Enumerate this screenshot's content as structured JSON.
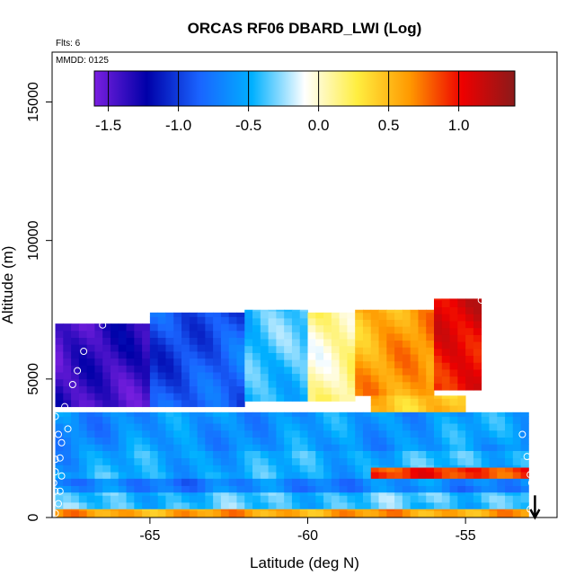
{
  "chart_data": {
    "type": "heatmap",
    "title": "ORCAS RF06 DBARD_LWI (Log)",
    "annotations": {
      "flights": "Flts: 6",
      "date": "MMDD: 0125"
    },
    "xlabel": "Latitude (deg N)",
    "ylabel": "Altitude (m)",
    "xlim": [
      -68.1,
      -52.1
    ],
    "ylim": [
      0,
      16800
    ],
    "x_ticks": [
      -65,
      -60,
      -55
    ],
    "x_tick_labels": [
      "-65",
      "-60",
      "-55"
    ],
    "y_ticks": [
      0,
      5000,
      10000,
      15000
    ],
    "y_tick_labels": [
      "0",
      "5000",
      "10000",
      "15000"
    ],
    "colorbar": {
      "range": [
        -1.6,
        1.4
      ],
      "ticks": [
        -1.5,
        -1.0,
        -0.5,
        0.0,
        0.5,
        1.0
      ],
      "tick_labels": [
        "-1.5",
        "-1.0",
        "-0.5",
        "0.0",
        "0.5",
        "1.0"
      ],
      "colors": [
        "#7a1fe0",
        "#0000a8",
        "#1a64ff",
        "#00b0ff",
        "#ffffff",
        "#ffee40",
        "#ff9900",
        "#ee0000",
        "#8b1a1a"
      ]
    },
    "grid": false,
    "cell_size": {
      "lat": 0.25,
      "alt": 250
    },
    "field_regions": [
      {
        "lat": [
          -68.0,
          -65.0
        ],
        "alt": [
          4000,
          7000
        ],
        "value": -1.4
      },
      {
        "lat": [
          -65.0,
          -62.0
        ],
        "alt": [
          4000,
          7400
        ],
        "value": -0.9
      },
      {
        "lat": [
          -62.0,
          -60.0
        ],
        "alt": [
          4200,
          7500
        ],
        "value": -0.4
      },
      {
        "lat": [
          -60.0,
          -58.5
        ],
        "alt": [
          4200,
          7400
        ],
        "value": 0.1
      },
      {
        "lat": [
          -58.5,
          -56.0
        ],
        "alt": [
          4400,
          7500
        ],
        "value": 0.6
      },
      {
        "lat": [
          -56.0,
          -54.5
        ],
        "alt": [
          4600,
          7900
        ],
        "value": 1.05
      },
      {
        "lat": [
          -58.0,
          -55.0
        ],
        "alt": [
          2800,
          4400
        ],
        "value": 0.5
      },
      {
        "lat": [
          -68.0,
          -53.0
        ],
        "alt": [
          2400,
          3800
        ],
        "value": -0.6
      },
      {
        "lat": [
          -68.0,
          -53.0
        ],
        "alt": [
          1400,
          2400
        ],
        "value": -0.5
      },
      {
        "lat": [
          -58.0,
          -53.0
        ],
        "alt": [
          1400,
          1800
        ],
        "value": 0.9
      },
      {
        "lat": [
          -68.0,
          -53.0
        ],
        "alt": [
          900,
          1400
        ],
        "value": -0.7
      },
      {
        "lat": [
          -68.0,
          -53.0
        ],
        "alt": [
          300,
          900
        ],
        "value": -0.4
      },
      {
        "lat": [
          -68.0,
          -53.0
        ],
        "alt": [
          0,
          300
        ],
        "value": 0.6
      }
    ],
    "profile_points": [
      {
        "lat": -66.5,
        "alt": 6950
      },
      {
        "lat": -67.1,
        "alt": 6000
      },
      {
        "lat": -67.3,
        "alt": 5300
      },
      {
        "lat": -67.45,
        "alt": 4800
      },
      {
        "lat": -67.7,
        "alt": 4000
      },
      {
        "lat": -68.0,
        "alt": 3650
      },
      {
        "lat": -67.9,
        "alt": 3000
      },
      {
        "lat": -67.6,
        "alt": 3200
      },
      {
        "lat": -67.8,
        "alt": 2700
      },
      {
        "lat": -68.0,
        "alt": 2100
      },
      {
        "lat": -67.85,
        "alt": 2150
      },
      {
        "lat": -68.0,
        "alt": 1650
      },
      {
        "lat": -67.8,
        "alt": 1500
      },
      {
        "lat": -68.05,
        "alt": 1250
      },
      {
        "lat": -68.0,
        "alt": 950
      },
      {
        "lat": -67.85,
        "alt": 950
      },
      {
        "lat": -68.1,
        "alt": 500
      },
      {
        "lat": -67.9,
        "alt": 500
      },
      {
        "lat": -68.0,
        "alt": 150
      },
      {
        "lat": -54.5,
        "alt": 7850
      },
      {
        "lat": -54.2,
        "alt": 6900
      },
      {
        "lat": -53.95,
        "alt": 6150
      },
      {
        "lat": -53.8,
        "alt": 5650
      },
      {
        "lat": -53.6,
        "alt": 5000
      },
      {
        "lat": -53.2,
        "alt": 3000
      },
      {
        "lat": -53.05,
        "alt": 2200
      },
      {
        "lat": -52.95,
        "alt": 1550
      },
      {
        "lat": -52.9,
        "alt": 1250
      },
      {
        "lat": -52.85,
        "alt": 900
      },
      {
        "lat": -52.95,
        "alt": 300
      }
    ],
    "arrow": {
      "lat": -52.8,
      "alt_from": 800,
      "alt_to": 0
    }
  }
}
